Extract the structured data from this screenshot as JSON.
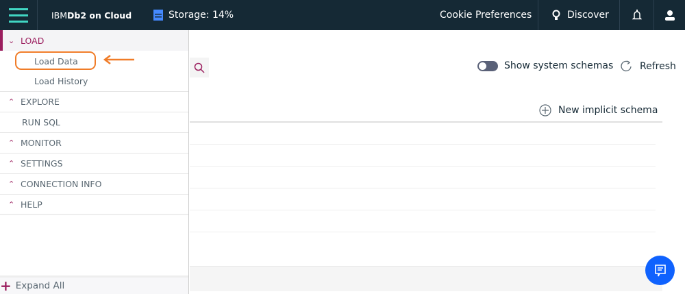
{
  "header": {
    "brand_prefix": "IBM ",
    "brand_bold": "Db2 on Cloud",
    "storage": "Storage: 14%",
    "cookie": "Cookie Preferences",
    "discover": "Discover"
  },
  "sidebar": {
    "load": "LOAD",
    "load_data": "Load Data",
    "load_history": "Load History",
    "explore": "EXPLORE",
    "run_sql": "RUN SQL",
    "monitor": "MONITOR",
    "settings": "SETTINGS",
    "connection_info": "CONNECTION INFO",
    "help": "HELP",
    "expand_all": "Expand All"
  },
  "toolbar": {
    "show_system_schemas": "Show system schemas",
    "show_system_schemas_on": false,
    "refresh": "Refresh",
    "new_implicit_schema": "New implicit schema"
  },
  "colors": {
    "header": "#152935",
    "accent": "#9b1e5e",
    "highlight": "#f07c28",
    "chat": "#0f62fe",
    "menu": "#41d6c3"
  }
}
